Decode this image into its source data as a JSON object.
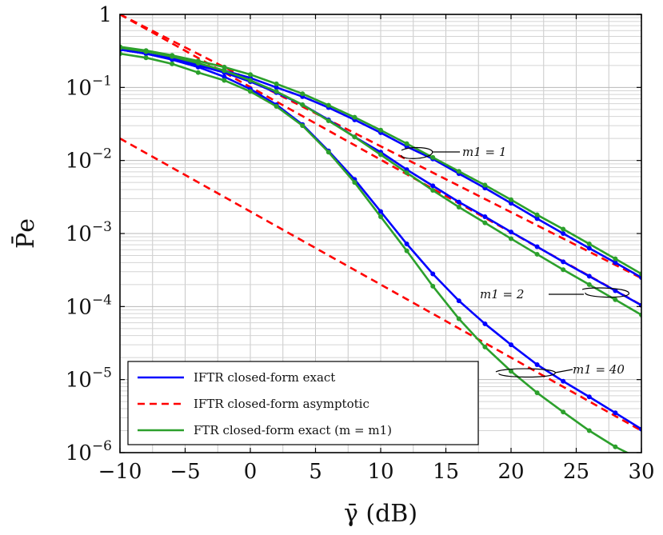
{
  "chart_data": {
    "type": "line",
    "title": "",
    "xlabel": "γ̄ (dB)",
    "ylabel": "P̄e",
    "xlim": [
      -10,
      30
    ],
    "ylim": [
      1e-06,
      1
    ],
    "yscale": "log",
    "grid": true,
    "legend_placement": "bottom-left",
    "x_ticks": [
      -10,
      -5,
      0,
      5,
      10,
      15,
      20,
      25,
      30
    ],
    "x_tick_labels": [
      "−10",
      "−5",
      "0",
      "5",
      "10",
      "15",
      "20",
      "25",
      "30"
    ],
    "y_ticks": [
      1,
      0.1,
      0.01,
      0.001,
      0.0001,
      1e-05,
      1e-06
    ],
    "y_tick_labels": [
      {
        "base": "1",
        "exp": ""
      },
      {
        "base": "10",
        "exp": "−1"
      },
      {
        "base": "10",
        "exp": "−2"
      },
      {
        "base": "10",
        "exp": "−3"
      },
      {
        "base": "10",
        "exp": "−4"
      },
      {
        "base": "10",
        "exp": "−5"
      },
      {
        "base": "10",
        "exp": "−6"
      }
    ],
    "legend": [
      {
        "label": "IFTR closed-form exact",
        "color": "#0000ff",
        "dash": false
      },
      {
        "label": "IFTR closed-form asymptotic",
        "color": "#ff0000",
        "dash": true
      },
      {
        "label": "FTR closed-form exact (m = m1)",
        "color": "#2ca02c",
        "dash": false
      }
    ],
    "annotations": [
      {
        "label": "m1 = 1",
        "x": 16.5,
        "y": 0.0135
      },
      {
        "label": "m1 = 2",
        "x": 25.5,
        "y": 0.000133
      },
      {
        "label": "m1 = 40",
        "x": 25.5,
        "y": 1.6e-05
      }
    ],
    "series": [
      {
        "name": "IFTR closed-form exact",
        "group": "m1 = 1",
        "color": "#0000ff",
        "style": "solid",
        "markers": true,
        "x": [
          -10,
          -8,
          -6,
          -4,
          -2,
          0,
          2,
          4,
          6,
          8,
          10,
          12,
          14,
          16,
          18,
          20,
          22,
          24,
          26,
          28,
          30
        ],
        "y": [
          0.33,
          0.29,
          0.25,
          0.21,
          0.17,
          0.135,
          0.1,
          0.075,
          0.053,
          0.036,
          0.024,
          0.0155,
          0.0105,
          0.0066,
          0.0042,
          0.0026,
          0.0016,
          0.001,
          0.00063,
          0.0004,
          0.00025
        ]
      },
      {
        "name": "IFTR closed-form exact",
        "group": "m1 = 2",
        "color": "#0000ff",
        "style": "solid",
        "markers": true,
        "x": [
          -10,
          -8,
          -6,
          -4,
          -2,
          0,
          2,
          4,
          6,
          8,
          10,
          12,
          14,
          16,
          18,
          20,
          22,
          24,
          26,
          28,
          30
        ],
        "y": [
          0.33,
          0.29,
          0.245,
          0.2,
          0.16,
          0.12,
          0.085,
          0.058,
          0.036,
          0.021,
          0.013,
          0.0075,
          0.0045,
          0.0027,
          0.0017,
          0.00105,
          0.00066,
          0.00041,
          0.00026,
          0.000165,
          0.000104
        ]
      },
      {
        "name": "IFTR closed-form exact",
        "group": "m1 = 40",
        "color": "#0000ff",
        "style": "solid",
        "markers": true,
        "x": [
          -10,
          -8,
          -6,
          -4,
          -2,
          0,
          2,
          4,
          6,
          8,
          10,
          12,
          14,
          16,
          18,
          20,
          22,
          24,
          26,
          28,
          30
        ],
        "y": [
          0.33,
          0.29,
          0.24,
          0.19,
          0.14,
          0.095,
          0.058,
          0.031,
          0.0135,
          0.0055,
          0.002,
          0.00072,
          0.00028,
          0.00012,
          5.8e-05,
          3e-05,
          1.6e-05,
          9.5e-06,
          5.8e-06,
          3.5e-06,
          2.1e-06
        ]
      },
      {
        "name": "IFTR closed-form asymptotic",
        "group": "m1 = 1",
        "color": "#ff0000",
        "style": "dashed",
        "markers": false,
        "x": [
          -10,
          30
        ],
        "y": [
          1.0,
          0.000245
        ]
      },
      {
        "name": "IFTR closed-form asymptotic",
        "group": "m1 = 2",
        "color": "#ff0000",
        "style": "dashed",
        "markers": false,
        "x": [
          -10,
          30
        ],
        "y": [
          1.0,
          0.000105
        ]
      },
      {
        "name": "IFTR closed-form asymptotic",
        "group": "m1 = 40",
        "color": "#ff0000",
        "style": "dashed",
        "markers": false,
        "x": [
          -10,
          30
        ],
        "y": [
          0.02,
          2e-06
        ]
      },
      {
        "name": "FTR closed-form exact (m = m1)",
        "group": "m1 = 1",
        "color": "#2ca02c",
        "style": "solid",
        "markers": true,
        "x": [
          -10,
          -8,
          -6,
          -4,
          -2,
          0,
          2,
          4,
          6,
          8,
          10,
          12,
          14,
          16,
          18,
          20,
          22,
          24,
          26,
          28,
          30
        ],
        "y": [
          0.36,
          0.32,
          0.275,
          0.23,
          0.19,
          0.15,
          0.112,
          0.082,
          0.057,
          0.039,
          0.026,
          0.017,
          0.011,
          0.0071,
          0.0046,
          0.0029,
          0.0018,
          0.00115,
          0.00072,
          0.00045,
          0.00028
        ]
      },
      {
        "name": "FTR closed-form exact (m = m1)",
        "group": "m1 = 2",
        "color": "#2ca02c",
        "style": "solid",
        "markers": true,
        "x": [
          -10,
          -8,
          -6,
          -4,
          -2,
          0,
          2,
          4,
          6,
          8,
          10,
          12,
          14,
          16,
          18,
          20,
          22,
          24,
          26,
          28,
          30
        ],
        "y": [
          0.35,
          0.31,
          0.265,
          0.215,
          0.17,
          0.125,
          0.088,
          0.058,
          0.035,
          0.021,
          0.012,
          0.0068,
          0.0039,
          0.0023,
          0.0014,
          0.00085,
          0.00052,
          0.00032,
          0.0002,
          0.000124,
          7.7e-05
        ]
      },
      {
        "name": "FTR closed-form exact (m = m1)",
        "group": "m1 = 40",
        "color": "#2ca02c",
        "style": "solid",
        "markers": true,
        "x": [
          -10,
          -8,
          -6,
          -4,
          -2,
          0,
          2,
          4,
          6,
          8,
          10,
          12,
          14,
          16,
          18,
          20,
          22,
          24,
          26,
          28,
          30
        ],
        "y": [
          0.29,
          0.255,
          0.21,
          0.16,
          0.125,
          0.088,
          0.055,
          0.03,
          0.013,
          0.005,
          0.0017,
          0.00058,
          0.00019,
          6.8e-05,
          2.8e-05,
          1.3e-05,
          6.6e-06,
          3.6e-06,
          2e-06,
          1.2e-06,
          8e-07
        ]
      }
    ]
  }
}
